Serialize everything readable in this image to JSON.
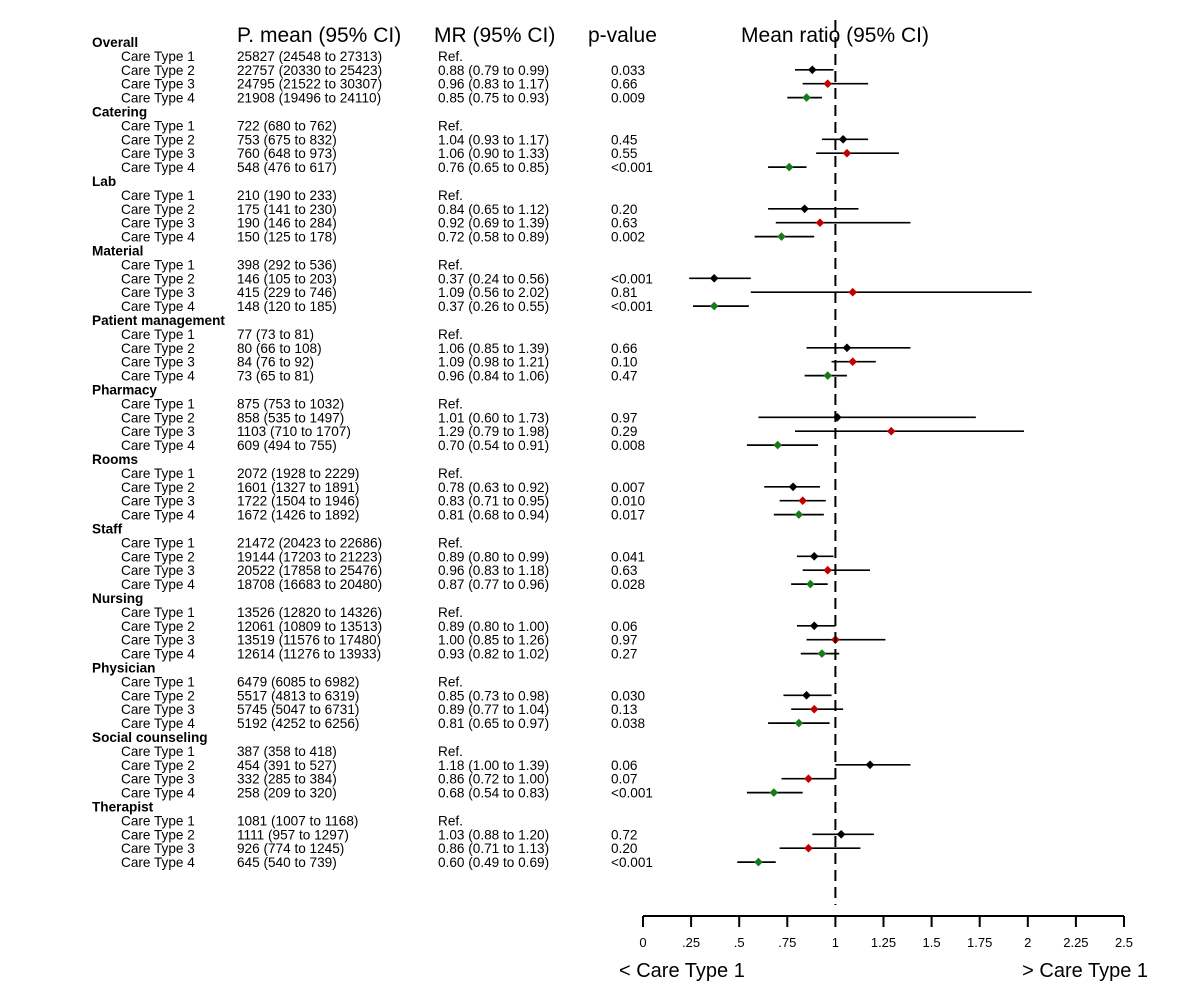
{
  "chart_data": {
    "type": "forest",
    "title": "Mean ratio (95% CI)",
    "headers": {
      "pmean": "P. mean (95% CI)",
      "mr": "MR (95% CI)",
      "pvalue": "p-value",
      "plot": "Mean ratio (95% CI)"
    },
    "reference_line": 1,
    "x_axis": {
      "min": 0,
      "max": 2.5,
      "ticks": [
        0,
        0.25,
        0.5,
        0.75,
        1,
        1.25,
        1.5,
        1.75,
        2,
        2.25,
        2.5
      ],
      "tick_labels": [
        "0",
        ".25",
        ".5",
        ".75",
        "1",
        "1.25",
        "1.5",
        "1.75",
        "2",
        "2.25",
        "2.5"
      ],
      "left_label": "< Care Type 1",
      "right_label": "> Care Type 1"
    },
    "marker_colors": {
      "Care Type 2": "#000000",
      "Care Type 3": "#c00000",
      "Care Type 4": "#1a7a1a"
    },
    "groups": [
      {
        "name": "Overall",
        "rows": [
          {
            "label": "Care Type 1",
            "pmean": "25827 (24548 to 27313)",
            "mr": "Ref.",
            "p": ""
          },
          {
            "label": "Care Type 2",
            "pmean": "22757 (20330 to 25423)",
            "mr": "0.88 (0.79 to 0.99)",
            "p": "0.033",
            "est": 0.88,
            "lo": 0.79,
            "hi": 0.99
          },
          {
            "label": "Care Type 3",
            "pmean": "24795 (21522 to 30307)",
            "mr": "0.96 (0.83 to 1.17)",
            "p": "0.66",
            "est": 0.96,
            "lo": 0.83,
            "hi": 1.17
          },
          {
            "label": "Care Type 4",
            "pmean": "21908 (19496 to 24110)",
            "mr": "0.85 (0.75 to 0.93)",
            "p": "0.009",
            "est": 0.85,
            "lo": 0.75,
            "hi": 0.93
          }
        ]
      },
      {
        "name": "Catering",
        "rows": [
          {
            "label": "Care Type 1",
            "pmean": "722 (680 to 762)",
            "mr": "Ref.",
            "p": ""
          },
          {
            "label": "Care Type 2",
            "pmean": "753 (675 to 832)",
            "mr": "1.04 (0.93 to 1.17)",
            "p": "0.45",
            "est": 1.04,
            "lo": 0.93,
            "hi": 1.17
          },
          {
            "label": "Care Type 3",
            "pmean": "760 (648 to 973)",
            "mr": "1.06 (0.90 to 1.33)",
            "p": "0.55",
            "est": 1.06,
            "lo": 0.9,
            "hi": 1.33
          },
          {
            "label": "Care Type 4",
            "pmean": "548 (476 to 617)",
            "mr": "0.76 (0.65 to 0.85)",
            "p": "<0.001",
            "est": 0.76,
            "lo": 0.65,
            "hi": 0.85
          }
        ]
      },
      {
        "name": "Lab",
        "rows": [
          {
            "label": "Care Type 1",
            "pmean": "210 (190 to 233)",
            "mr": "Ref.",
            "p": ""
          },
          {
            "label": "Care Type 2",
            "pmean": "175 (141 to 230)",
            "mr": "0.84 (0.65 to 1.12)",
            "p": "0.20",
            "est": 0.84,
            "lo": 0.65,
            "hi": 1.12
          },
          {
            "label": "Care Type 3",
            "pmean": "190 (146 to 284)",
            "mr": "0.92 (0.69 to 1.39)",
            "p": "0.63",
            "est": 0.92,
            "lo": 0.69,
            "hi": 1.39
          },
          {
            "label": "Care Type 4",
            "pmean": "150 (125 to 178)",
            "mr": "0.72 (0.58 to 0.89)",
            "p": "0.002",
            "est": 0.72,
            "lo": 0.58,
            "hi": 0.89
          }
        ]
      },
      {
        "name": "Material",
        "rows": [
          {
            "label": "Care Type 1",
            "pmean": "398 (292 to 536)",
            "mr": "Ref.",
            "p": ""
          },
          {
            "label": "Care Type 2",
            "pmean": "146 (105 to 203)",
            "mr": "0.37 (0.24 to 0.56)",
            "p": "<0.001",
            "est": 0.37,
            "lo": 0.24,
            "hi": 0.56
          },
          {
            "label": "Care Type 3",
            "pmean": "415 (229 to 746)",
            "mr": "1.09 (0.56 to 2.02)",
            "p": "0.81",
            "est": 1.09,
            "lo": 0.56,
            "hi": 2.02
          },
          {
            "label": "Care Type 4",
            "pmean": "148 (120 to 185)",
            "mr": "0.37 (0.26 to 0.55)",
            "p": "<0.001",
            "est": 0.37,
            "lo": 0.26,
            "hi": 0.55
          }
        ]
      },
      {
        "name": "Patient management",
        "rows": [
          {
            "label": "Care Type 1",
            "pmean": "77 (73 to 81)",
            "mr": "Ref.",
            "p": ""
          },
          {
            "label": "Care Type 2",
            "pmean": "80 (66 to 108)",
            "mr": "1.06 (0.85 to 1.39)",
            "p": "0.66",
            "est": 1.06,
            "lo": 0.85,
            "hi": 1.39
          },
          {
            "label": "Care Type 3",
            "pmean": "84 (76 to 92)",
            "mr": "1.09 (0.98 to 1.21)",
            "p": "0.10",
            "est": 1.09,
            "lo": 0.98,
            "hi": 1.21
          },
          {
            "label": "Care Type 4",
            "pmean": "73 (65 to 81)",
            "mr": "0.96 (0.84 to 1.06)",
            "p": "0.47",
            "est": 0.96,
            "lo": 0.84,
            "hi": 1.06
          }
        ]
      },
      {
        "name": "Pharmacy",
        "rows": [
          {
            "label": "Care Type 1",
            "pmean": "875 (753 to 1032)",
            "mr": "Ref.",
            "p": ""
          },
          {
            "label": "Care Type 2",
            "pmean": "858 (535 to 1497)",
            "mr": "1.01 (0.60 to 1.73)",
            "p": "0.97",
            "est": 1.01,
            "lo": 0.6,
            "hi": 1.73
          },
          {
            "label": "Care Type 3",
            "pmean": "1103 (710 to 1707)",
            "mr": "1.29 (0.79 to 1.98)",
            "p": "0.29",
            "est": 1.29,
            "lo": 0.79,
            "hi": 1.98
          },
          {
            "label": "Care Type 4",
            "pmean": "609 (494 to 755)",
            "mr": "0.70 (0.54 to 0.91)",
            "p": "0.008",
            "est": 0.7,
            "lo": 0.54,
            "hi": 0.91
          }
        ]
      },
      {
        "name": "Rooms",
        "rows": [
          {
            "label": "Care Type 1",
            "pmean": "2072 (1928 to 2229)",
            "mr": "Ref.",
            "p": ""
          },
          {
            "label": "Care Type 2",
            "pmean": "1601 (1327 to 1891)",
            "mr": "0.78 (0.63 to 0.92)",
            "p": "0.007",
            "est": 0.78,
            "lo": 0.63,
            "hi": 0.92
          },
          {
            "label": "Care Type 3",
            "pmean": "1722 (1504 to 1946)",
            "mr": "0.83 (0.71 to 0.95)",
            "p": "0.010",
            "est": 0.83,
            "lo": 0.71,
            "hi": 0.95
          },
          {
            "label": "Care Type 4",
            "pmean": "1672 (1426 to 1892)",
            "mr": "0.81 (0.68 to 0.94)",
            "p": "0.017",
            "est": 0.81,
            "lo": 0.68,
            "hi": 0.94
          }
        ]
      },
      {
        "name": "Staff",
        "rows": [
          {
            "label": "Care Type 1",
            "pmean": "21472 (20423 to 22686)",
            "mr": "Ref.",
            "p": ""
          },
          {
            "label": "Care Type 2",
            "pmean": "19144 (17203 to 21223)",
            "mr": "0.89 (0.80 to 0.99)",
            "p": "0.041",
            "est": 0.89,
            "lo": 0.8,
            "hi": 0.99
          },
          {
            "label": "Care Type 3",
            "pmean": "20522 (17858 to 25476)",
            "mr": "0.96 (0.83 to 1.18)",
            "p": "0.63",
            "est": 0.96,
            "lo": 0.83,
            "hi": 1.18
          },
          {
            "label": "Care Type 4",
            "pmean": "18708 (16683 to 20480)",
            "mr": "0.87 (0.77 to 0.96)",
            "p": "0.028",
            "est": 0.87,
            "lo": 0.77,
            "hi": 0.96
          }
        ]
      },
      {
        "name": "Nursing",
        "rows": [
          {
            "label": "Care Type 1",
            "pmean": "13526 (12820 to 14326)",
            "mr": "Ref.",
            "p": ""
          },
          {
            "label": "Care Type 2",
            "pmean": "12061 (10809 to 13513)",
            "mr": "0.89 (0.80 to 1.00)",
            "p": "0.06",
            "est": 0.89,
            "lo": 0.8,
            "hi": 1.0
          },
          {
            "label": "Care Type 3",
            "pmean": "13519 (11576 to 17480)",
            "mr": "1.00 (0.85 to 1.26)",
            "p": "0.97",
            "est": 1.0,
            "lo": 0.85,
            "hi": 1.26
          },
          {
            "label": "Care Type 4",
            "pmean": "12614 (11276 to 13933)",
            "mr": "0.93 (0.82 to 1.02)",
            "p": "0.27",
            "est": 0.93,
            "lo": 0.82,
            "hi": 1.02
          }
        ]
      },
      {
        "name": "Physician",
        "rows": [
          {
            "label": "Care Type 1",
            "pmean": "6479 (6085 to 6982)",
            "mr": "Ref.",
            "p": ""
          },
          {
            "label": "Care Type 2",
            "pmean": "5517 (4813 to 6319)",
            "mr": "0.85 (0.73 to 0.98)",
            "p": "0.030",
            "est": 0.85,
            "lo": 0.73,
            "hi": 0.98
          },
          {
            "label": "Care Type 3",
            "pmean": "5745 (5047 to 6731)",
            "mr": "0.89 (0.77 to 1.04)",
            "p": "0.13",
            "est": 0.89,
            "lo": 0.77,
            "hi": 1.04
          },
          {
            "label": "Care Type 4",
            "pmean": "5192 (4252 to 6256)",
            "mr": "0.81 (0.65 to 0.97)",
            "p": "0.038",
            "est": 0.81,
            "lo": 0.65,
            "hi": 0.97
          }
        ]
      },
      {
        "name": "Social counseling",
        "rows": [
          {
            "label": "Care Type 1",
            "pmean": "387 (358 to 418)",
            "mr": "Ref.",
            "p": ""
          },
          {
            "label": "Care Type 2",
            "pmean": "454 (391 to 527)",
            "mr": "1.18 (1.00 to 1.39)",
            "p": "0.06",
            "est": 1.18,
            "lo": 1.0,
            "hi": 1.39
          },
          {
            "label": "Care Type 3",
            "pmean": "332 (285 to 384)",
            "mr": "0.86 (0.72 to 1.00)",
            "p": "0.07",
            "est": 0.86,
            "lo": 0.72,
            "hi": 1.0
          },
          {
            "label": "Care Type 4",
            "pmean": "258 (209 to 320)",
            "mr": "0.68 (0.54 to 0.83)",
            "p": "<0.001",
            "est": 0.68,
            "lo": 0.54,
            "hi": 0.83
          }
        ]
      },
      {
        "name": "Therapist",
        "rows": [
          {
            "label": "Care Type 1",
            "pmean": "1081 (1007 to 1168)",
            "mr": "Ref.",
            "p": ""
          },
          {
            "label": "Care Type 2",
            "pmean": "1111 (957 to 1297)",
            "mr": "1.03 (0.88 to 1.20)",
            "p": "0.72",
            "est": 1.03,
            "lo": 0.88,
            "hi": 1.2
          },
          {
            "label": "Care Type 3",
            "pmean": "926 (774 to 1245)",
            "mr": "0.86 (0.71 to 1.13)",
            "p": "0.20",
            "est": 0.86,
            "lo": 0.71,
            "hi": 1.13
          },
          {
            "label": "Care Type 4",
            "pmean": "645 (540 to 739)",
            "mr": "0.60 (0.49 to 0.69)",
            "p": "<0.001",
            "est": 0.6,
            "lo": 0.49,
            "hi": 0.69
          }
        ]
      }
    ]
  }
}
